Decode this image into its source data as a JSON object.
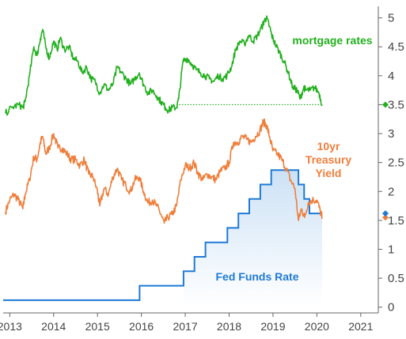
{
  "chart_data": {
    "type": "line",
    "title": "",
    "xlabel": "",
    "ylabel": "",
    "xlim": [
      2012.85,
      2021.4
    ],
    "ylim": [
      -0.1,
      5.2
    ],
    "x_ticks": [
      "2013",
      "2014",
      "2015",
      "2016",
      "2017",
      "2018",
      "2019",
      "2020",
      "2021"
    ],
    "y_ticks": [
      "0",
      "0.5",
      "1",
      "1.5",
      "2",
      "2.5",
      "3",
      "3.5",
      "4",
      "4.5",
      "5"
    ],
    "y_axis_position": "right",
    "grid": false,
    "series": [
      {
        "name": "mortgage rates",
        "color": "#22b01e",
        "points": [
          [
            2012.9,
            3.35
          ],
          [
            2013.05,
            3.45
          ],
          [
            2013.2,
            3.5
          ],
          [
            2013.3,
            3.45
          ],
          [
            2013.35,
            3.55
          ],
          [
            2013.45,
            4.0
          ],
          [
            2013.55,
            4.5
          ],
          [
            2013.62,
            4.35
          ],
          [
            2013.7,
            4.65
          ],
          [
            2013.75,
            4.8
          ],
          [
            2013.82,
            4.5
          ],
          [
            2013.9,
            4.3
          ],
          [
            2014.0,
            4.6
          ],
          [
            2014.08,
            4.45
          ],
          [
            2014.15,
            4.65
          ],
          [
            2014.25,
            4.45
          ],
          [
            2014.35,
            4.5
          ],
          [
            2014.45,
            4.3
          ],
          [
            2014.55,
            4.25
          ],
          [
            2014.65,
            4.05
          ],
          [
            2014.75,
            4.15
          ],
          [
            2014.85,
            3.95
          ],
          [
            2014.95,
            3.9
          ],
          [
            2015.05,
            3.7
          ],
          [
            2015.15,
            3.85
          ],
          [
            2015.25,
            3.75
          ],
          [
            2015.35,
            3.85
          ],
          [
            2015.45,
            4.15
          ],
          [
            2015.55,
            4.05
          ],
          [
            2015.65,
            3.95
          ],
          [
            2015.75,
            3.85
          ],
          [
            2015.85,
            3.95
          ],
          [
            2015.95,
            4.05
          ],
          [
            2016.05,
            3.85
          ],
          [
            2016.15,
            3.7
          ],
          [
            2016.25,
            3.75
          ],
          [
            2016.35,
            3.65
          ],
          [
            2016.45,
            3.55
          ],
          [
            2016.55,
            3.45
          ],
          [
            2016.62,
            3.4
          ],
          [
            2016.7,
            3.45
          ],
          [
            2016.8,
            3.45
          ],
          [
            2016.85,
            3.6
          ],
          [
            2016.95,
            4.25
          ],
          [
            2017.05,
            4.3
          ],
          [
            2017.15,
            4.2
          ],
          [
            2017.25,
            4.1
          ],
          [
            2017.35,
            4.05
          ],
          [
            2017.45,
            4.0
          ],
          [
            2017.55,
            3.95
          ],
          [
            2017.65,
            3.9
          ],
          [
            2017.75,
            4.0
          ],
          [
            2017.85,
            3.95
          ],
          [
            2017.95,
            4.0
          ],
          [
            2018.05,
            4.15
          ],
          [
            2018.15,
            4.45
          ],
          [
            2018.25,
            4.6
          ],
          [
            2018.35,
            4.55
          ],
          [
            2018.45,
            4.7
          ],
          [
            2018.55,
            4.6
          ],
          [
            2018.65,
            4.7
          ],
          [
            2018.75,
            4.85
          ],
          [
            2018.8,
            4.95
          ],
          [
            2018.85,
            5.0
          ],
          [
            2018.92,
            4.85
          ],
          [
            2018.97,
            4.7
          ],
          [
            2019.05,
            4.55
          ],
          [
            2019.15,
            4.4
          ],
          [
            2019.25,
            4.25
          ],
          [
            2019.35,
            4.05
          ],
          [
            2019.45,
            3.8
          ],
          [
            2019.55,
            3.75
          ],
          [
            2019.62,
            3.6
          ],
          [
            2019.7,
            3.8
          ],
          [
            2019.75,
            3.75
          ],
          [
            2019.85,
            3.75
          ],
          [
            2019.95,
            3.8
          ],
          [
            2020.05,
            3.7
          ],
          [
            2020.12,
            3.5
          ]
        ]
      },
      {
        "name": "10yr Treasury Yield",
        "color": "#ef7e3b",
        "points": [
          [
            2012.9,
            1.65
          ],
          [
            2013.0,
            1.85
          ],
          [
            2013.1,
            1.95
          ],
          [
            2013.2,
            1.85
          ],
          [
            2013.3,
            1.7
          ],
          [
            2013.35,
            1.95
          ],
          [
            2013.45,
            2.2
          ],
          [
            2013.55,
            2.6
          ],
          [
            2013.62,
            2.55
          ],
          [
            2013.7,
            2.85
          ],
          [
            2013.75,
            2.95
          ],
          [
            2013.82,
            2.65
          ],
          [
            2013.9,
            2.75
          ],
          [
            2014.0,
            3.0
          ],
          [
            2014.1,
            2.75
          ],
          [
            2014.2,
            2.75
          ],
          [
            2014.3,
            2.65
          ],
          [
            2014.4,
            2.55
          ],
          [
            2014.5,
            2.55
          ],
          [
            2014.6,
            2.45
          ],
          [
            2014.7,
            2.55
          ],
          [
            2014.8,
            2.3
          ],
          [
            2014.9,
            2.25
          ],
          [
            2015.0,
            2.0
          ],
          [
            2015.05,
            1.75
          ],
          [
            2015.15,
            2.05
          ],
          [
            2015.25,
            1.95
          ],
          [
            2015.35,
            2.25
          ],
          [
            2015.45,
            2.4
          ],
          [
            2015.55,
            2.2
          ],
          [
            2015.65,
            2.1
          ],
          [
            2015.75,
            2.0
          ],
          [
            2015.85,
            2.2
          ],
          [
            2015.95,
            2.25
          ],
          [
            2016.05,
            2.0
          ],
          [
            2016.15,
            1.8
          ],
          [
            2016.25,
            1.85
          ],
          [
            2016.35,
            1.75
          ],
          [
            2016.45,
            1.6
          ],
          [
            2016.52,
            1.45
          ],
          [
            2016.6,
            1.55
          ],
          [
            2016.7,
            1.6
          ],
          [
            2016.8,
            1.75
          ],
          [
            2016.9,
            2.2
          ],
          [
            2017.0,
            2.45
          ],
          [
            2017.1,
            2.4
          ],
          [
            2017.2,
            2.5
          ],
          [
            2017.3,
            2.3
          ],
          [
            2017.4,
            2.2
          ],
          [
            2017.5,
            2.3
          ],
          [
            2017.6,
            2.25
          ],
          [
            2017.7,
            2.2
          ],
          [
            2017.8,
            2.35
          ],
          [
            2017.9,
            2.4
          ],
          [
            2018.0,
            2.5
          ],
          [
            2018.1,
            2.85
          ],
          [
            2018.2,
            2.85
          ],
          [
            2018.3,
            2.95
          ],
          [
            2018.4,
            2.9
          ],
          [
            2018.5,
            2.85
          ],
          [
            2018.6,
            2.95
          ],
          [
            2018.7,
            3.05
          ],
          [
            2018.78,
            3.2
          ],
          [
            2018.85,
            3.15
          ],
          [
            2018.92,
            2.95
          ],
          [
            2019.0,
            2.7
          ],
          [
            2019.1,
            2.65
          ],
          [
            2019.2,
            2.55
          ],
          [
            2019.3,
            2.4
          ],
          [
            2019.4,
            2.2
          ],
          [
            2019.5,
            2.05
          ],
          [
            2019.58,
            1.5
          ],
          [
            2019.65,
            1.7
          ],
          [
            2019.72,
            1.55
          ],
          [
            2019.8,
            1.8
          ],
          [
            2019.9,
            1.85
          ],
          [
            2020.0,
            1.85
          ],
          [
            2020.08,
            1.65
          ],
          [
            2020.12,
            1.55
          ]
        ]
      },
      {
        "name": "Fed Funds Rate",
        "color": "#1e7ad6",
        "step": true,
        "points": [
          [
            2012.85,
            0.12
          ],
          [
            2015.96,
            0.37
          ],
          [
            2016.96,
            0.62
          ],
          [
            2017.21,
            0.87
          ],
          [
            2017.46,
            1.12
          ],
          [
            2017.96,
            1.37
          ],
          [
            2018.21,
            1.62
          ],
          [
            2018.46,
            1.87
          ],
          [
            2018.71,
            2.12
          ],
          [
            2018.96,
            2.37
          ],
          [
            2019.58,
            2.12
          ],
          [
            2019.71,
            1.87
          ],
          [
            2019.83,
            1.62
          ],
          [
            2020.12,
            1.62
          ]
        ]
      }
    ],
    "reference_line": {
      "series": "mortgage rates",
      "value": 3.5,
      "from": 2016.8,
      "to": 2020.12,
      "style": "dotted"
    },
    "markers": [
      {
        "series": "mortgage rates",
        "value": 3.5,
        "shape": "diamond"
      },
      {
        "series": "10yr Treasury Yield",
        "value": 1.55,
        "shape": "diamond"
      },
      {
        "series": "Fed Funds Rate",
        "value": 1.62,
        "shape": "diamond"
      }
    ],
    "annotations": [
      {
        "series": "mortgage rates",
        "lines": [
          "mortgage rates"
        ],
        "color": "#22b01e"
      },
      {
        "series": "10yr Treasury Yield",
        "lines": [
          "10yr",
          "Treasury",
          "Yield"
        ],
        "color": "#ef7e3b"
      },
      {
        "series": "Fed Funds Rate",
        "lines": [
          "Fed Funds Rate"
        ],
        "color": "#1e7ad6"
      }
    ]
  }
}
